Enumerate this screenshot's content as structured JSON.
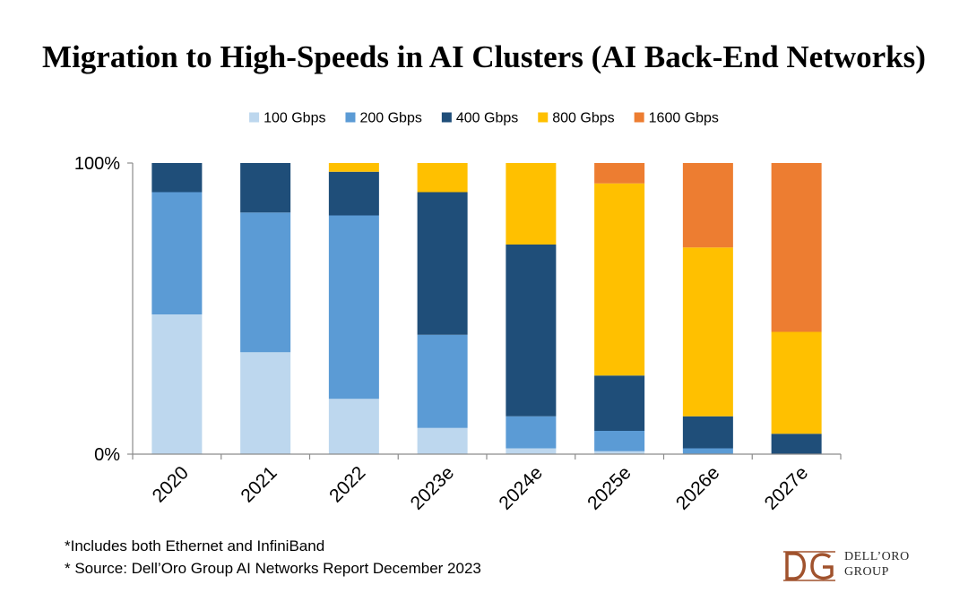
{
  "title": "Migration to High-Speeds in AI Clusters (AI Back-End Networks)",
  "footnotes": [
    "*Includes both Ethernet and InfiniBand",
    "* Source: Dell’Oro Group AI Networks Report December 2023"
  ],
  "logo": {
    "letters": "DG",
    "line1": "DELL’ORO",
    "line2": "GROUP",
    "color": "#a0522d"
  },
  "chart_data": {
    "type": "bar",
    "stacked": true,
    "percent": true,
    "categories": [
      "2020",
      "2021",
      "2022",
      "2023e",
      "2024e",
      "2025e",
      "2026e",
      "2027e"
    ],
    "series": [
      {
        "name": "100 Gbps",
        "color": "#bdd7ee",
        "values": [
          48,
          35,
          19,
          9,
          2,
          1,
          0,
          0
        ]
      },
      {
        "name": "200 Gbps",
        "color": "#5b9bd5",
        "values": [
          42,
          48,
          63,
          32,
          11,
          7,
          2,
          0
        ]
      },
      {
        "name": "400 Gbps",
        "color": "#1f4e79",
        "values": [
          10,
          17,
          15,
          49,
          59,
          19,
          11,
          7
        ]
      },
      {
        "name": "800 Gbps",
        "color": "#ffc000",
        "values": [
          0,
          0,
          3,
          10,
          28,
          66,
          58,
          35
        ]
      },
      {
        "name": "1600 Gbps",
        "color": "#ed7d31",
        "values": [
          0,
          0,
          0,
          0,
          0,
          7,
          29,
          58
        ]
      }
    ],
    "ylim": [
      0,
      100
    ],
    "yticks": [
      "0%",
      "100%"
    ],
    "legend_position": "top",
    "grid": false,
    "xlabel": "",
    "ylabel": ""
  }
}
